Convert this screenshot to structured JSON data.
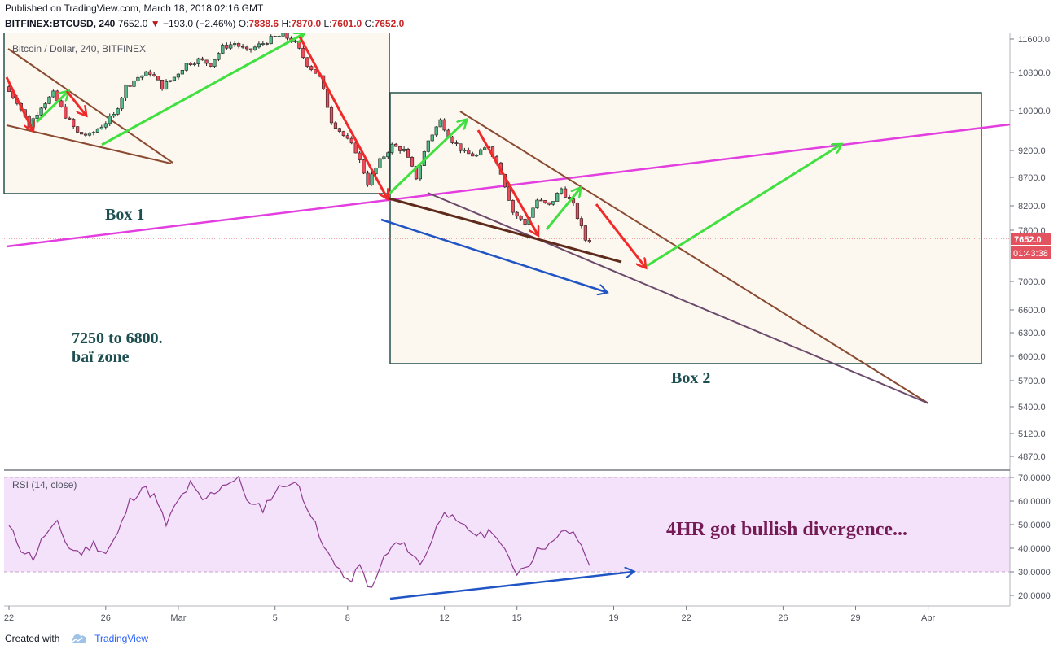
{
  "header": {
    "published": "Published on TradingView.com, March 18, 2018 02:16 GMT",
    "symbol": "BITFINEX:BTCUSD, 240",
    "last": "7652.0",
    "change_arrow": "▼",
    "change": "−193.0 (−2.46%)",
    "o_label": "O:",
    "o_value": "7838.6",
    "h_label": "H:",
    "h_value": "7870.0",
    "l_label": "L:",
    "l_value": "7601.0",
    "c_label": "C:",
    "c_value": "7652.0"
  },
  "footer": {
    "created_with": "Created with",
    "brand": "TradingView",
    "logo_icon": "tradingview-cloud-icon"
  },
  "chart_data": {
    "type": "candlestick",
    "title": "Bitcoin / Dollar, 240, BITFINEX",
    "y_ticks": [
      "11600.0",
      "10800.0",
      "10000.0",
      "9200.0",
      "8700.0",
      "8200.0",
      "7800.0",
      "7000.0",
      "6600.0",
      "6300.0",
      "6000.0",
      "5700.0",
      "5400.0",
      "5120.0",
      "4870.0"
    ],
    "y_tick_values": [
      11600,
      10800,
      10000,
      9200,
      8700,
      8200,
      7800,
      7000,
      6600,
      6300,
      6000,
      5700,
      5400,
      5120,
      4870
    ],
    "last_price_label": "7652.0",
    "last_price": 7652,
    "countdown_label": "01:43:38",
    "x_ticks": [
      "22",
      "26",
      "Mar",
      "5",
      "8",
      "12",
      "15",
      "19",
      "22",
      "26",
      "29",
      "Apr"
    ],
    "x_tick_dates": [
      "2018-02-22",
      "2018-02-26",
      "2018-03-01",
      "2018-03-05",
      "2018-03-08",
      "2018-03-12",
      "2018-03-15",
      "2018-03-19",
      "2018-03-22",
      "2018-03-26",
      "2018-03-29",
      "2018-04-01"
    ],
    "price_path": [
      [
        "2018-02-22",
        10500
      ],
      [
        "2018-02-22T12",
        10200
      ],
      [
        "2018-02-23",
        9700
      ],
      [
        "2018-02-23T12",
        10100
      ],
      [
        "2018-02-24",
        10350
      ],
      [
        "2018-02-24T12",
        9900
      ],
      [
        "2018-02-25",
        9550
      ],
      [
        "2018-02-25T12",
        9500
      ],
      [
        "2018-02-26",
        9700
      ],
      [
        "2018-02-26T12",
        9900
      ],
      [
        "2018-02-27",
        10500
      ],
      [
        "2018-02-27T12",
        10700
      ],
      [
        "2018-02-28",
        10800
      ],
      [
        "2018-02-28T12",
        10500
      ],
      [
        "2018-03-01",
        10700
      ],
      [
        "2018-03-01T12",
        11000
      ],
      [
        "2018-03-02",
        11100
      ],
      [
        "2018-03-02T12",
        11000
      ],
      [
        "2018-03-03",
        11400
      ],
      [
        "2018-03-03T12",
        11500
      ],
      [
        "2018-03-04",
        11300
      ],
      [
        "2018-03-04T12",
        11450
      ],
      [
        "2018-03-05",
        11600
      ],
      [
        "2018-03-05T12",
        11700
      ],
      [
        "2018-03-06",
        11500
      ],
      [
        "2018-03-06T12",
        11000
      ],
      [
        "2018-03-07",
        10700
      ],
      [
        "2018-03-07T12",
        9800
      ],
      [
        "2018-03-08",
        9500
      ],
      [
        "2018-03-08T12",
        9200
      ],
      [
        "2018-03-09",
        8600
      ],
      [
        "2018-03-09T12",
        9000
      ],
      [
        "2018-03-10",
        9300
      ],
      [
        "2018-03-10T12",
        9200
      ],
      [
        "2018-03-11",
        8700
      ],
      [
        "2018-03-11T12",
        9400
      ],
      [
        "2018-03-12",
        9800
      ],
      [
        "2018-03-12T12",
        9400
      ],
      [
        "2018-03-13",
        9150
      ],
      [
        "2018-03-13T12",
        9100
      ],
      [
        "2018-03-14",
        9300
      ],
      [
        "2018-03-14T12",
        8800
      ],
      [
        "2018-03-15",
        8100
      ],
      [
        "2018-03-15T12",
        7900
      ],
      [
        "2018-03-16",
        8300
      ],
      [
        "2018-03-16T12",
        8200
      ],
      [
        "2018-03-17",
        8500
      ],
      [
        "2018-03-17T12",
        8200
      ],
      [
        "2018-03-18",
        7652
      ]
    ],
    "rsi": {
      "label": "RSI (14, close)",
      "y_ticks": [
        "70.0000",
        "60.0000",
        "50.0000",
        "40.0000",
        "30.0000",
        "20.0000"
      ],
      "y_tick_values": [
        70,
        60,
        50,
        40,
        30,
        20
      ],
      "band": [
        30,
        70
      ],
      "path": [
        [
          "2018-02-22",
          49
        ],
        [
          "2018-02-22T12",
          40
        ],
        [
          "2018-02-23",
          36
        ],
        [
          "2018-02-23T12",
          46
        ],
        [
          "2018-02-24",
          50
        ],
        [
          "2018-02-24T12",
          40
        ],
        [
          "2018-02-25",
          38
        ],
        [
          "2018-02-25T12",
          42
        ],
        [
          "2018-02-26",
          38
        ],
        [
          "2018-02-26T12",
          46
        ],
        [
          "2018-02-27",
          60
        ],
        [
          "2018-02-27T12",
          66
        ],
        [
          "2018-02-28",
          62
        ],
        [
          "2018-02-28T12",
          50
        ],
        [
          "2018-03-01",
          60
        ],
        [
          "2018-03-01T12",
          67
        ],
        [
          "2018-03-02",
          60
        ],
        [
          "2018-03-02T12",
          64
        ],
        [
          "2018-03-03",
          68
        ],
        [
          "2018-03-03T12",
          69
        ],
        [
          "2018-03-04",
          58
        ],
        [
          "2018-03-04T12",
          57
        ],
        [
          "2018-03-05",
          64
        ],
        [
          "2018-03-05T12",
          68
        ],
        [
          "2018-03-06",
          66
        ],
        [
          "2018-03-06T12",
          54
        ],
        [
          "2018-03-07",
          40
        ],
        [
          "2018-03-07T12",
          34
        ],
        [
          "2018-03-08",
          25
        ],
        [
          "2018-03-08T12",
          32
        ],
        [
          "2018-03-09",
          22
        ],
        [
          "2018-03-09T12",
          36
        ],
        [
          "2018-03-10",
          42
        ],
        [
          "2018-03-10T12",
          40
        ],
        [
          "2018-03-11",
          33
        ],
        [
          "2018-03-11T12",
          44
        ],
        [
          "2018-03-12",
          57
        ],
        [
          "2018-03-12T12",
          50
        ],
        [
          "2018-03-13",
          48
        ],
        [
          "2018-03-13T12",
          45
        ],
        [
          "2018-03-14",
          48
        ],
        [
          "2018-03-14T12",
          38
        ],
        [
          "2018-03-15",
          30
        ],
        [
          "2018-03-15T12",
          34
        ],
        [
          "2018-03-16",
          41
        ],
        [
          "2018-03-16T12",
          42
        ],
        [
          "2018-03-17",
          48
        ],
        [
          "2018-03-17T12",
          44
        ],
        [
          "2018-03-18",
          34
        ]
      ]
    },
    "annotations": {
      "box1": "Box 1",
      "box2": "Box 2",
      "zone_line1": "7250 to 6800.",
      "zone_line2": "baï zone",
      "divergence": "4HR got bullish divergence..."
    },
    "colors": {
      "up": "#53b987",
      "down": "#eb4d5c",
      "candle_outline": "#1f1f1f",
      "box_fill": "#fdf8ef",
      "box_stroke": "#26514f",
      "magenta_line": "#e23ee0",
      "brown_line": "#8a4a32",
      "dark_brown_line": "#5d2a1c",
      "purple_line": "#6b4a6b",
      "blue_arrow": "#2255c4",
      "green_arrow": "#3fe03f",
      "red_arrow": "#f02a2a",
      "rsi_line": "#8e3c8e",
      "rsi_band": "#f4e2fb",
      "text_teal": "#1d4f52",
      "text_purple": "#741a55",
      "price_label_bg": "#e2535f"
    }
  }
}
